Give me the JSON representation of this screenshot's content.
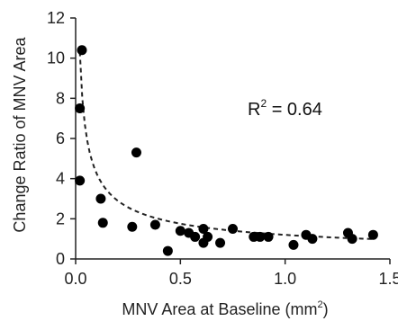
{
  "chart_data": {
    "type": "scatter",
    "xlabel_main": "MNV Area at Baseline (mm",
    "xlabel_sup": "2",
    "xlabel_end": ")",
    "ylabel": "Change Ratio of MNV Area",
    "xlim": [
      0,
      1.5
    ],
    "ylim": [
      0,
      12
    ],
    "x_ticks": [
      "0.0",
      "0.5",
      "1.0",
      "1.5"
    ],
    "y_ticks": [
      "0",
      "2",
      "4",
      "6",
      "8",
      "10",
      "12"
    ],
    "x_tick_values": [
      0,
      0.5,
      1.0,
      1.5
    ],
    "y_tick_values": [
      0,
      2,
      4,
      6,
      8,
      10,
      12
    ],
    "grid": false,
    "annotation": {
      "prefix": "R",
      "sup": "2",
      "suffix": " = 0.64"
    },
    "points": [
      {
        "x": 0.03,
        "y": 10.4
      },
      {
        "x": 0.02,
        "y": 7.5
      },
      {
        "x": 0.02,
        "y": 3.9
      },
      {
        "x": 0.12,
        "y": 3.0
      },
      {
        "x": 0.13,
        "y": 1.8
      },
      {
        "x": 0.27,
        "y": 1.6
      },
      {
        "x": 0.29,
        "y": 5.3
      },
      {
        "x": 0.38,
        "y": 1.7
      },
      {
        "x": 0.44,
        "y": 0.4
      },
      {
        "x": 0.5,
        "y": 1.4
      },
      {
        "x": 0.54,
        "y": 1.3
      },
      {
        "x": 0.57,
        "y": 1.1
      },
      {
        "x": 0.61,
        "y": 1.5
      },
      {
        "x": 0.61,
        "y": 0.8
      },
      {
        "x": 0.63,
        "y": 1.1
      },
      {
        "x": 0.69,
        "y": 0.8
      },
      {
        "x": 0.75,
        "y": 1.5
      },
      {
        "x": 0.85,
        "y": 1.1
      },
      {
        "x": 0.88,
        "y": 1.1
      },
      {
        "x": 0.92,
        "y": 1.1
      },
      {
        "x": 1.04,
        "y": 0.7
      },
      {
        "x": 1.1,
        "y": 1.2
      },
      {
        "x": 1.13,
        "y": 1.0
      },
      {
        "x": 1.3,
        "y": 1.3
      },
      {
        "x": 1.32,
        "y": 1.0
      },
      {
        "x": 1.42,
        "y": 1.2
      }
    ],
    "trendline": {
      "type": "power",
      "a": 1.2,
      "b": -0.55,
      "x_from": 0.02,
      "x_to": 1.43,
      "style": "dashed"
    }
  }
}
